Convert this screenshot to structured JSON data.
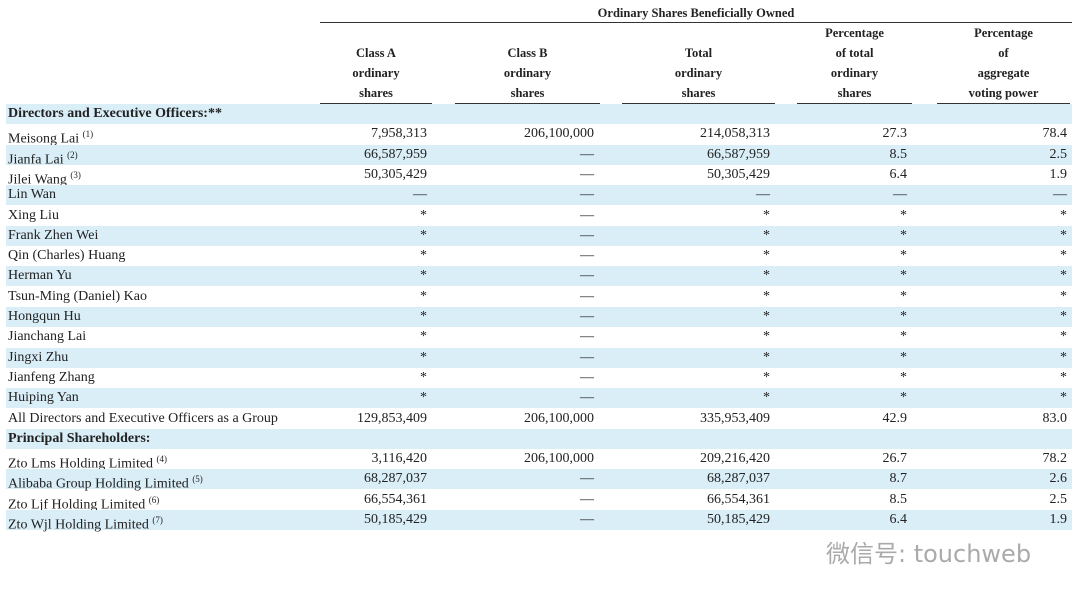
{
  "table": {
    "group_header": "Ordinary Shares Beneficially Owned",
    "columns": [
      [
        "Class A",
        "ordinary",
        "shares"
      ],
      [
        "Class B",
        "ordinary",
        "shares"
      ],
      [
        "Total",
        "ordinary",
        "shares"
      ],
      [
        "Percentage",
        "of total",
        "ordinary",
        "shares"
      ],
      [
        "Percentage",
        "of",
        "aggregate",
        "voting power"
      ]
    ],
    "rows": [
      {
        "section": "Directors and Executive Officers:**"
      },
      {
        "name": "Meisong Lai",
        "note": "(1)",
        "cells": [
          "7,958,313",
          "206,100,000",
          "214,058,313",
          "27.3",
          "78.4"
        ]
      },
      {
        "name": "Jianfa Lai",
        "note": "(2)",
        "cells": [
          "66,587,959",
          "—",
          "66,587,959",
          "8.5",
          "2.5"
        ]
      },
      {
        "name": "Jilei Wang",
        "note": "(3)",
        "cells": [
          "50,305,429",
          "—",
          "50,305,429",
          "6.4",
          "1.9"
        ]
      },
      {
        "name": "Lin Wan",
        "cells": [
          "—",
          "—",
          "—",
          "—",
          "—"
        ]
      },
      {
        "name": "Xing Liu",
        "cells": [
          "*",
          "—",
          "*",
          "*",
          "*"
        ]
      },
      {
        "name": "Frank Zhen Wei",
        "cells": [
          "*",
          "—",
          "*",
          "*",
          "*"
        ]
      },
      {
        "name": "Qin (Charles) Huang",
        "cells": [
          "*",
          "—",
          "*",
          "*",
          "*"
        ]
      },
      {
        "name": "Herman Yu",
        "cells": [
          "*",
          "—",
          "*",
          "*",
          "*"
        ]
      },
      {
        "name": "Tsun-Ming (Daniel) Kao",
        "cells": [
          "*",
          "—",
          "*",
          "*",
          "*"
        ]
      },
      {
        "name": "Hongqun Hu",
        "cells": [
          "*",
          "—",
          "*",
          "*",
          "*"
        ]
      },
      {
        "name": "Jianchang Lai",
        "cells": [
          "*",
          "—",
          "*",
          "*",
          "*"
        ]
      },
      {
        "name": "Jingxi Zhu",
        "cells": [
          "*",
          "—",
          "*",
          "*",
          "*"
        ]
      },
      {
        "name": "Jianfeng Zhang",
        "cells": [
          "*",
          "—",
          "*",
          "*",
          "*"
        ]
      },
      {
        "name": "Huiping Yan",
        "cells": [
          "*",
          "—",
          "*",
          "*",
          "*"
        ]
      },
      {
        "name": "All Directors and Executive Officers as a Group",
        "cells": [
          "129,853,409",
          "206,100,000",
          "335,953,409",
          "42.9",
          "83.0"
        ]
      },
      {
        "section": "Principal Shareholders:"
      },
      {
        "name": "Zto Lms Holding Limited",
        "note": "(4)",
        "cells": [
          "3,116,420",
          "206,100,000",
          "209,216,420",
          "26.7",
          "78.2"
        ]
      },
      {
        "name": "Alibaba Group Holding Limited",
        "note": "(5)",
        "cells": [
          "68,287,037",
          "—",
          "68,287,037",
          "8.7",
          "2.6"
        ]
      },
      {
        "name": "Zto Ljf Holding Limited",
        "note": "(6)",
        "cells": [
          "66,554,361",
          "—",
          "66,554,361",
          "8.5",
          "2.5"
        ]
      },
      {
        "name": "Zto Wjl Holding Limited",
        "note": "(7)",
        "cells": [
          "50,185,429",
          "—",
          "50,185,429",
          "6.4",
          "1.9"
        ]
      }
    ]
  },
  "watermark": "微信号: touchweb"
}
